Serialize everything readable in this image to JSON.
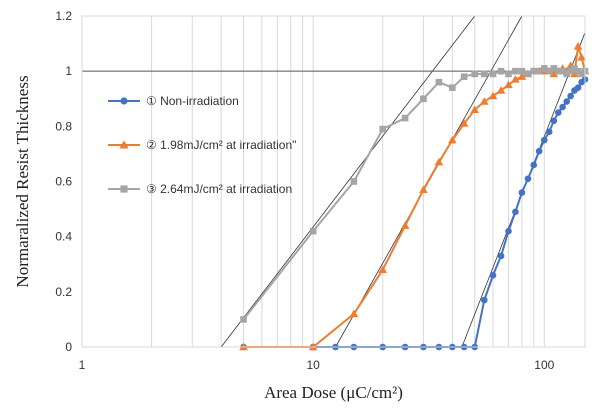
{
  "chart_data": {
    "type": "line",
    "xlabel": "Area Dose (μC/cm²)",
    "ylabel": "Normaralized Resist Thickness",
    "xscale": "log",
    "xlim": [
      1,
      150
    ],
    "ylim": [
      0,
      1.2
    ],
    "x_ticks": [
      1,
      10,
      100
    ],
    "x_tick_labels": [
      "1",
      "10",
      "100"
    ],
    "y_ticks": [
      0,
      0.2,
      0.4,
      0.6,
      0.8,
      1,
      1.2
    ],
    "y_tick_labels": [
      "0",
      "0.2",
      "0.4",
      "0.6",
      "0.8",
      "1",
      "1.2"
    ],
    "grid": "vertical",
    "legend_position": "left-center",
    "reference_line_y": 1,
    "series": [
      {
        "name": "① Non-irradiation",
        "color": "#4472C4",
        "marker": "circle",
        "x": [
          5,
          10,
          12.5,
          15,
          20,
          25,
          30,
          35,
          40,
          45,
          50,
          55,
          60,
          65,
          70,
          75,
          80,
          85,
          90,
          95,
          100,
          105,
          110,
          115,
          120,
          125,
          130,
          135,
          140,
          145,
          150
        ],
        "y": [
          0,
          0,
          0,
          0,
          0,
          0,
          0,
          0,
          0,
          0,
          0,
          0.17,
          0.26,
          0.33,
          0.42,
          0.49,
          0.56,
          0.61,
          0.66,
          0.71,
          0.75,
          0.78,
          0.82,
          0.85,
          0.87,
          0.89,
          0.91,
          0.93,
          0.94,
          0.96,
          0.97
        ]
      },
      {
        "name": "② 1.98mJ/cm² at irradiation\"",
        "color": "#ED7D31",
        "marker": "triangle",
        "x": [
          5,
          10,
          15,
          20,
          25,
          30,
          35,
          40,
          45,
          50,
          55,
          60,
          65,
          70,
          75,
          80,
          85,
          90,
          95,
          100,
          105,
          110,
          115,
          120,
          125,
          130,
          135,
          140,
          145,
          150
        ],
        "y": [
          0,
          0,
          0.12,
          0.28,
          0.44,
          0.57,
          0.67,
          0.75,
          0.81,
          0.86,
          0.89,
          0.91,
          0.93,
          0.95,
          0.97,
          0.98,
          0.99,
          1.0,
          1.0,
          1.0,
          1.0,
          0.99,
          1.0,
          1.01,
          1.0,
          1.02,
          0.99,
          1.09,
          1.05,
          1.0
        ]
      },
      {
        "name": "③ 2.64mJ/cm² at irradiation",
        "color": "#A5A5A5",
        "marker": "square",
        "x": [
          5,
          10,
          15,
          20,
          25,
          30,
          35,
          40,
          45,
          50,
          55,
          60,
          65,
          70,
          75,
          80,
          85,
          90,
          95,
          100,
          105,
          110,
          115,
          120,
          125,
          130,
          135,
          140,
          145,
          150
        ],
        "y": [
          0.1,
          0.42,
          0.6,
          0.79,
          0.83,
          0.9,
          0.96,
          0.94,
          0.98,
          0.99,
          0.99,
          0.99,
          1.0,
          0.99,
          1.0,
          1.0,
          0.99,
          1.0,
          1.0,
          1.01,
          1.0,
          1.01,
          1.0,
          1.0,
          0.99,
          1.0,
          1.01,
          1.0,
          0.99,
          1.0
        ]
      }
    ],
    "fit_lines": [
      {
        "series": "① Non-irradiation",
        "from": [
          44,
          0
        ],
        "to": [
          160,
          1.2
        ]
      },
      {
        "series": "② 1.98mJ/cm² at irradiation\"",
        "from": [
          12.5,
          0
        ],
        "to": [
          80,
          1.2
        ]
      },
      {
        "series": "③ 2.64mJ/cm² at irradiation",
        "from": [
          4,
          0
        ],
        "to": [
          50,
          1.2
        ]
      }
    ]
  }
}
